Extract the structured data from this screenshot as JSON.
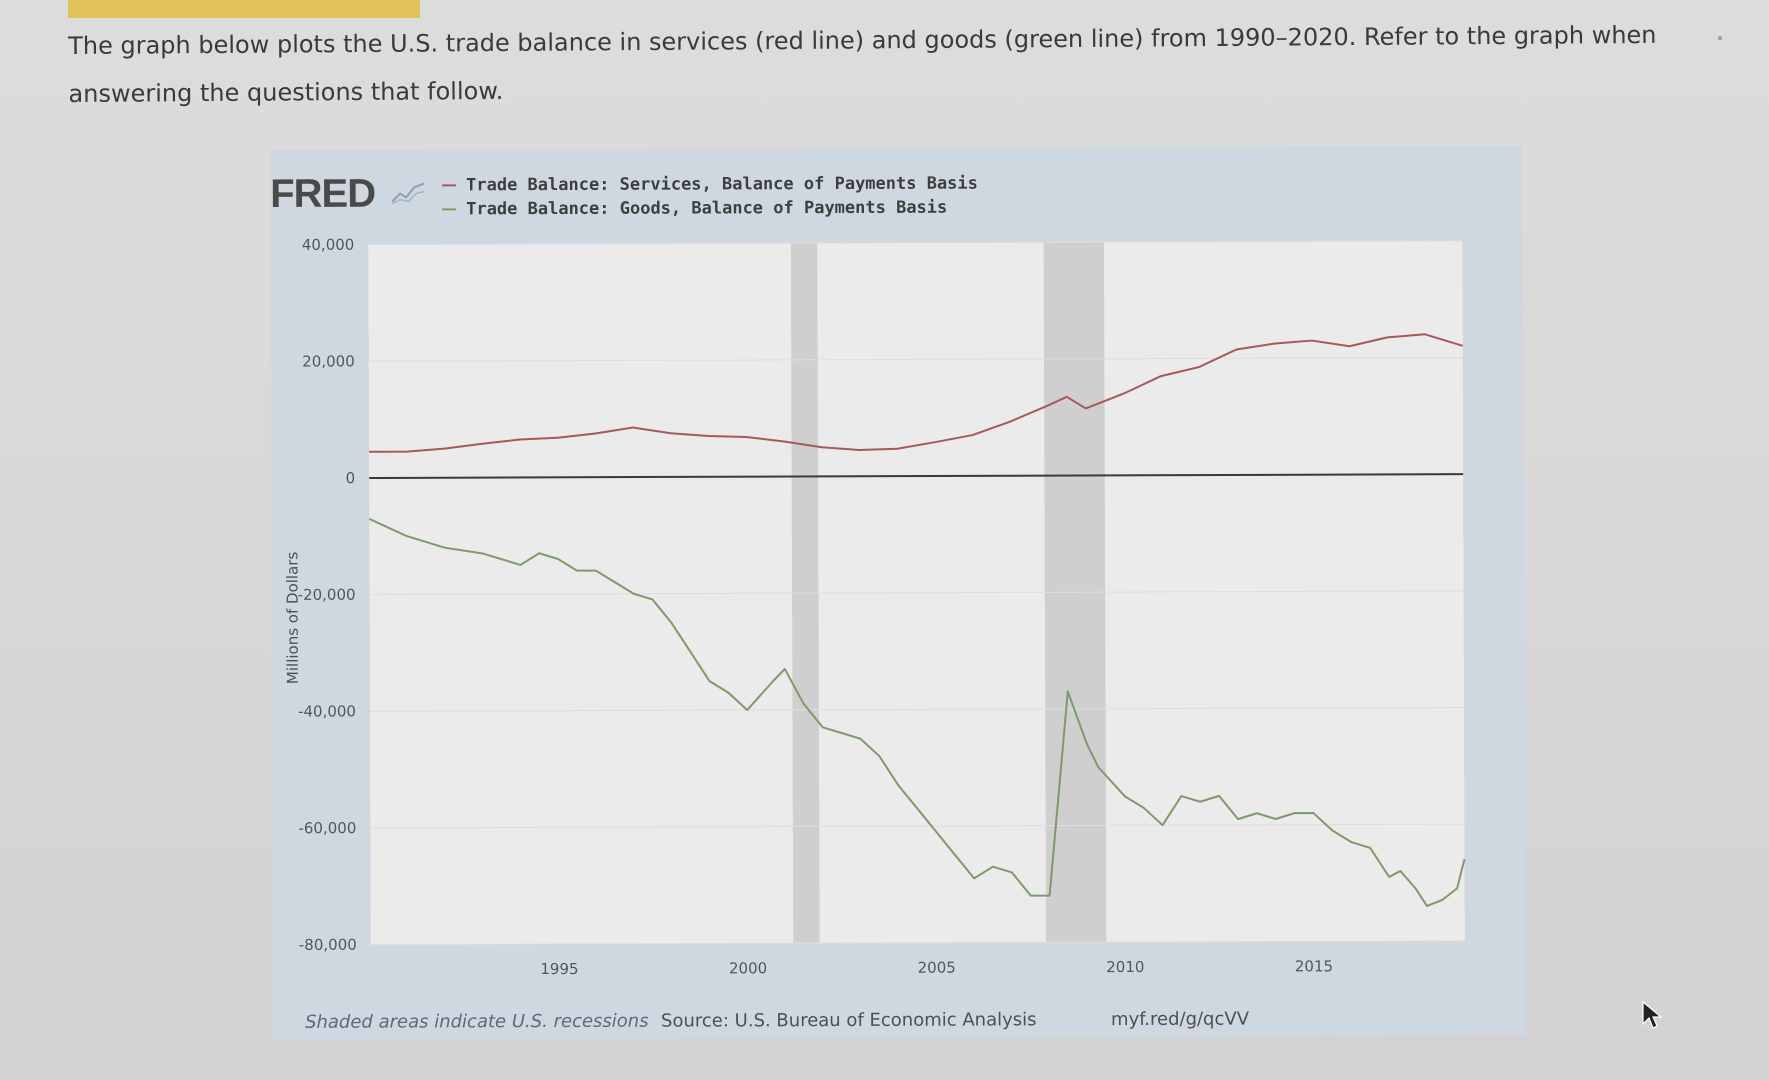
{
  "page": {
    "prompt": "The graph below plots the U.S. trade balance in services (red line) and goods (green line) from 1990–2020. Refer to the graph when answering the questions that follow."
  },
  "chart_data": {
    "type": "line",
    "brand": "FRED",
    "ylabel": "Millions of Dollars",
    "ylim": [
      -80000,
      40000
    ],
    "xlim": [
      1990.0,
      2019.0
    ],
    "y_ticks": [
      "40,000",
      "20,000",
      "0",
      "-20,000",
      "-40,000",
      "-60,000",
      "-80,000"
    ],
    "x_ticks": [
      "1995",
      "2000",
      "2005",
      "2010",
      "2015"
    ],
    "recessions": [
      [
        2001.2,
        2001.9
      ],
      [
        2007.9,
        2009.5
      ]
    ],
    "series": [
      {
        "name": "Trade Balance: Services, Balance of Payments Basis",
        "color": "#a45a5a",
        "x": [
          1990.0,
          1991.0,
          1992.0,
          1993.0,
          1994.0,
          1995.0,
          1996.0,
          1997.0,
          1998.0,
          1999.0,
          2000.0,
          2001.0,
          2002.0,
          2003.0,
          2004.0,
          2005.0,
          2006.0,
          2007.0,
          2008.0,
          2008.5,
          2009.0,
          2010.0,
          2011.0,
          2012.0,
          2013.0,
          2014.0,
          2015.0,
          2016.0,
          2017.0,
          2018.0,
          2019.0
        ],
        "y": [
          4500,
          4500,
          5000,
          5800,
          6500,
          6800,
          7500,
          8500,
          7500,
          7000,
          6800,
          6000,
          5000,
          4500,
          4700,
          5800,
          7000,
          9300,
          12000,
          13500,
          11500,
          14000,
          17000,
          18500,
          21500,
          22500,
          23000,
          22000,
          23500,
          24000,
          22000
        ]
      },
      {
        "name": "Trade Balance: Goods, Balance of Payments Basis",
        "color": "#7f9a6a",
        "x": [
          1990.0,
          1991.0,
          1992.0,
          1993.0,
          1994.0,
          1994.5,
          1995.0,
          1995.5,
          1996.0,
          1996.5,
          1997.0,
          1997.5,
          1998.0,
          1998.5,
          1999.0,
          1999.5,
          2000.0,
          2000.7,
          2001.0,
          2001.5,
          2002.0,
          2002.5,
          2003.0,
          2003.5,
          2004.0,
          2004.5,
          2005.0,
          2005.5,
          2006.0,
          2006.5,
          2007.0,
          2007.5,
          2008.0,
          2008.5,
          2009.0,
          2009.3,
          2010.0,
          2010.5,
          2011.0,
          2011.5,
          2012.0,
          2012.5,
          2013.0,
          2013.5,
          2014.0,
          2014.5,
          2015.0,
          2015.5,
          2016.0,
          2016.5,
          2017.0,
          2017.3,
          2017.7,
          2018.0,
          2018.4,
          2018.8,
          2019.0
        ],
        "y": [
          -7000,
          -10000,
          -12000,
          -13000,
          -15000,
          -13000,
          -14000,
          -16000,
          -16000,
          -18000,
          -20000,
          -21000,
          -25000,
          -30000,
          -35000,
          -37000,
          -40000,
          -35000,
          -33000,
          -39000,
          -43000,
          -44000,
          -45000,
          -48000,
          -53000,
          -57000,
          -61000,
          -65000,
          -69000,
          -67000,
          -68000,
          -72000,
          -72000,
          -37000,
          -46000,
          -50000,
          -55000,
          -57000,
          -60000,
          -55000,
          -56000,
          -55000,
          -59000,
          -58000,
          -59000,
          -58000,
          -58000,
          -61000,
          -63000,
          -64000,
          -69000,
          -68000,
          -71000,
          -74000,
          -73000,
          -71000,
          -66000
        ]
      }
    ],
    "footnote_left": "Shaded areas indicate U.S. recessions",
    "footnote_source": "Source: U.S. Bureau of Economic Analysis",
    "footnote_url": "myf.red/g/qcVV"
  }
}
